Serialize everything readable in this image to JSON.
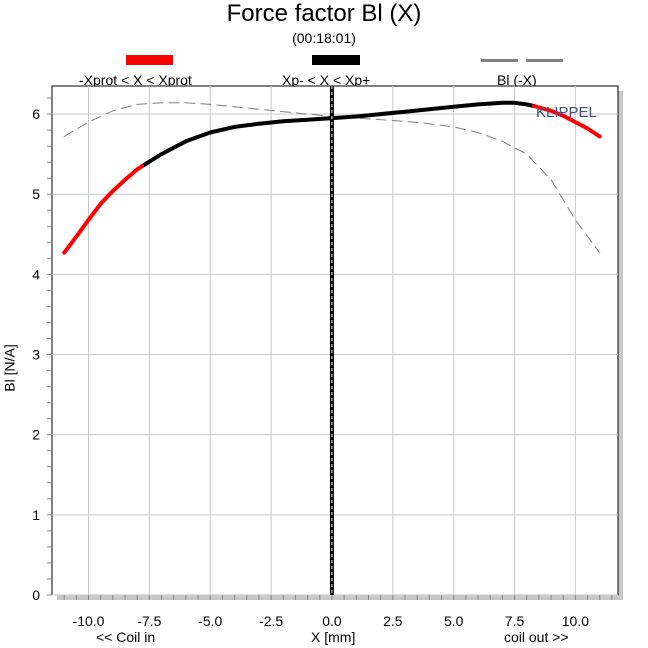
{
  "chart_data": {
    "type": "line",
    "title": "Force factor Bl (X)",
    "subtitle": "(00:18:01)",
    "xlabel": "X [mm]",
    "ylabel": "Bl [N/A]",
    "x_note_left": "<< Coil in",
    "x_note_right": "coil out >>",
    "watermark": "KLIPPEL",
    "xlim": [
      -11.5,
      11.75
    ],
    "ylim": [
      0,
      6.35
    ],
    "x_ticks": [
      -10.0,
      -7.5,
      -5.0,
      -2.5,
      0.0,
      2.5,
      5.0,
      7.5,
      10.0
    ],
    "x_tick_labels": [
      "-10.0",
      "-7.5",
      "-5.0",
      "-2.5",
      "0.0",
      "2.5",
      "5.0",
      "7.5",
      "10.0"
    ],
    "y_ticks": [
      0,
      1,
      2,
      3,
      4,
      5,
      6
    ],
    "y_tick_labels": [
      "0",
      "1",
      "2",
      "3",
      "4",
      "5",
      "6"
    ],
    "grid": true,
    "legend": [
      {
        "label": "-Xprot < X < Xprot",
        "color": "#ff0000",
        "style": "solid"
      },
      {
        "label": "Xp- < X < Xp+",
        "color": "#000000",
        "style": "solid"
      },
      {
        "label": "Bl (-X)",
        "color": "#808080",
        "style": "dashed"
      }
    ],
    "series": [
      {
        "name": "-Xprot < X < Xprot",
        "color": "#ff0000",
        "segments": [
          {
            "x": [
              -11.0,
              -10.5,
              -10.0,
              -9.5,
              -9.0,
              -8.5,
              -8.0,
              -7.8
            ],
            "y": [
              4.27,
              4.47,
              4.68,
              4.88,
              5.04,
              5.18,
              5.31,
              5.35
            ]
          },
          {
            "x": [
              8.3,
              9.0,
              9.5,
              10.0,
              10.5,
              11.0
            ],
            "y": [
              6.1,
              6.04,
              5.98,
              5.9,
              5.82,
              5.72
            ]
          }
        ]
      },
      {
        "name": "Xp- < X < Xp+",
        "color": "#000000",
        "segments": [
          {
            "x": [
              -7.8,
              -7.0,
              -6.0,
              -5.0,
              -4.0,
              -3.0,
              -2.0,
              -1.0,
              0.0,
              1.0,
              2.0,
              3.0,
              4.0,
              5.0,
              6.0,
              7.0,
              7.5,
              8.0,
              8.3
            ],
            "y": [
              5.35,
              5.5,
              5.66,
              5.77,
              5.84,
              5.88,
              5.91,
              5.93,
              5.95,
              5.97,
              6.0,
              6.03,
              6.06,
              6.09,
              6.12,
              6.14,
              6.14,
              6.12,
              6.1
            ]
          }
        ]
      },
      {
        "name": "Bl (-X)",
        "color": "#808080",
        "segments": [
          {
            "x": [
              -11.0,
              -10.0,
              -9.0,
              -8.0,
              -7.0,
              -6.0,
              -5.0,
              -4.0,
              -3.0,
              -2.0,
              -1.0,
              0.0,
              1.0,
              2.0,
              3.0,
              4.0,
              5.0,
              6.0,
              7.0,
              8.0,
              9.0,
              10.0,
              11.0
            ],
            "y": [
              5.72,
              5.9,
              6.04,
              6.12,
              6.14,
              6.14,
              6.12,
              6.09,
              6.06,
              6.03,
              6.0,
              5.97,
              5.95,
              5.93,
              5.91,
              5.88,
              5.84,
              5.77,
              5.66,
              5.5,
              5.18,
              4.68,
              4.27
            ]
          }
        ]
      }
    ],
    "vertical_marker_x": 0.0
  }
}
